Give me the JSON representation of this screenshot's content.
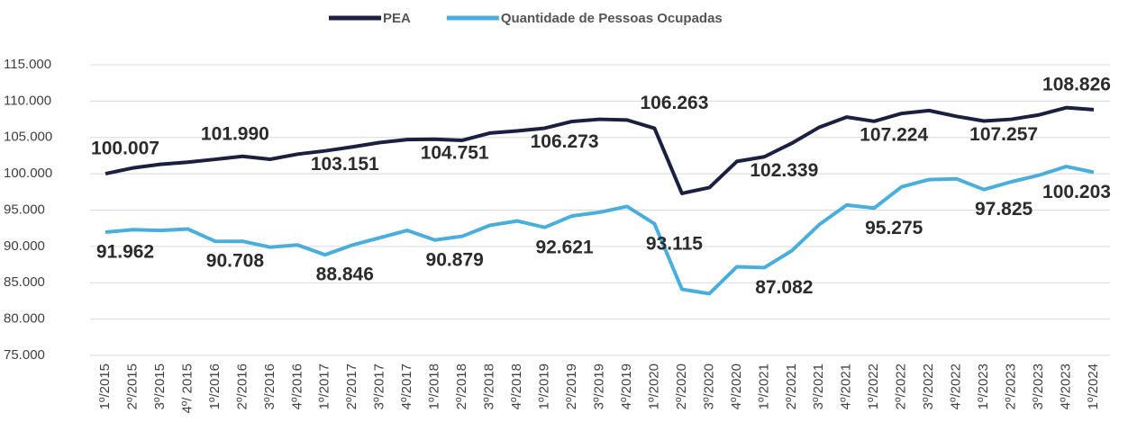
{
  "chart_data": {
    "type": "line",
    "categories": [
      "1º/2015",
      "2º/2015",
      "3º/2015",
      "4º/ 2015",
      "1º/2016",
      "2º/2016",
      "3º/2016",
      "4º/2016",
      "1º/2017",
      "2º/2017",
      "3º/2017",
      "4º/2017",
      "1º/2018",
      "2º/2018",
      "3º/2018",
      "4º/2018",
      "1º/2019",
      "2º/2019",
      "3º/2019",
      "4º/2019",
      "1º/2020",
      "2º/2020",
      "3º/2020",
      "4º/2020",
      "1º/2021",
      "2º/2021",
      "3º/2021",
      "4º/2021",
      "1º/2022",
      "2º/2022",
      "3º/2022",
      "4º/2022",
      "1º/2023",
      "2º/2023",
      "3º/2023",
      "4º/2023",
      "1º/2024"
    ],
    "series": [
      {
        "name": "PEA",
        "color": "#1b2040",
        "values": [
          100007,
          100800,
          101300,
          101600,
          101990,
          102400,
          102000,
          102700,
          103151,
          103700,
          104300,
          104700,
          104751,
          104600,
          105600,
          105900,
          106273,
          107200,
          107500,
          107400,
          106263,
          97300,
          98100,
          101700,
          102339,
          104200,
          106400,
          107800,
          107224,
          108300,
          108700,
          107900,
          107257,
          107500,
          108100,
          109100,
          108826
        ],
        "value_labels": [
          "100.007",
          null,
          null,
          null,
          "101.990",
          null,
          null,
          null,
          "103.151",
          null,
          null,
          null,
          "104.751",
          null,
          null,
          null,
          "106.273",
          null,
          null,
          null,
          "106.263",
          null,
          null,
          null,
          "102.339",
          null,
          null,
          null,
          "107.224",
          null,
          null,
          null,
          "107.257",
          null,
          null,
          null,
          "108.826"
        ]
      },
      {
        "name": "Quantidade de Pessoas Ocupadas",
        "color": "#4aaedc",
        "values": [
          91962,
          92300,
          92200,
          92400,
          90708,
          90700,
          89900,
          90200,
          88846,
          90200,
          91200,
          92200,
          90879,
          91400,
          92900,
          93500,
          92621,
          94200,
          94700,
          95500,
          93115,
          84100,
          83500,
          87200,
          87082,
          89400,
          93000,
          95700,
          95275,
          98200,
          99200,
          99300,
          97825,
          98900,
          99800,
          101000,
          100203
        ],
        "value_labels": [
          "91.962",
          null,
          null,
          null,
          "90.708",
          null,
          null,
          null,
          "88.846",
          null,
          null,
          null,
          "90.879",
          null,
          null,
          null,
          "92.621",
          null,
          null,
          null,
          "93.115",
          null,
          null,
          null,
          "87.082",
          null,
          null,
          null,
          "95.275",
          null,
          null,
          null,
          "97.825",
          null,
          null,
          null,
          "100.203"
        ]
      }
    ],
    "ylim": [
      75000,
      115000
    ],
    "yticks": [
      {
        "value": 75000,
        "label": "75.000"
      },
      {
        "value": 80000,
        "label": "80.000"
      },
      {
        "value": 85000,
        "label": "85.000"
      },
      {
        "value": 90000,
        "label": "90.000"
      },
      {
        "value": 95000,
        "label": "95.000"
      },
      {
        "value": 100000,
        "label": "100.000"
      },
      {
        "value": 105000,
        "label": "105.000"
      },
      {
        "value": 110000,
        "label": "110.000"
      },
      {
        "value": 115000,
        "label": "115.000"
      }
    ],
    "grid": true,
    "legend": "top"
  }
}
